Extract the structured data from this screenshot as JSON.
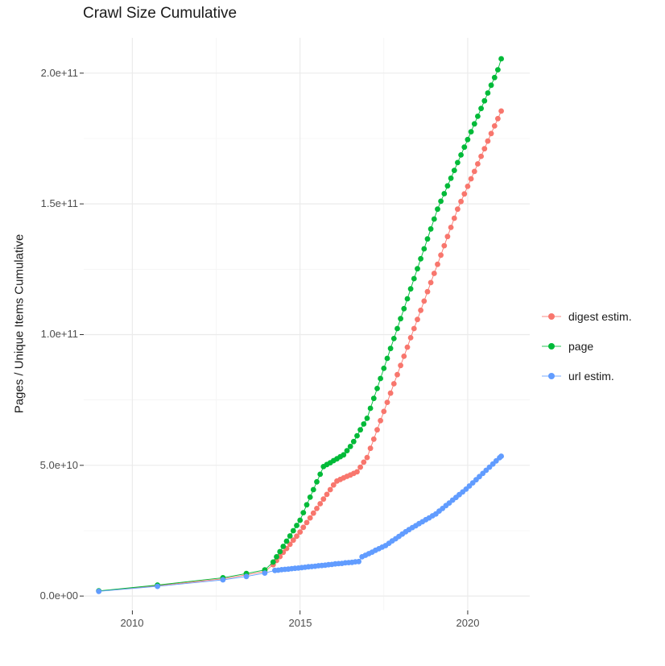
{
  "title": "Crawl Size Cumulative",
  "axes": {
    "y_title": "Pages / Unique Items Cumulative",
    "y_tick_labels": [
      "0.0e+00",
      "5.0e+10",
      "1.0e+11",
      "1.5e+11",
      "2.0e+11"
    ],
    "x_tick_labels": [
      "2010",
      "2015",
      "2020"
    ]
  },
  "colors": {
    "digest": "#F8766D",
    "page": "#00BA38",
    "url": "#619CFF",
    "grid_major": "#EBEBEB",
    "grid_minor": "#F4F4F4",
    "tick_mark": "#333333",
    "tick_label": "#4D4D4D",
    "text": "#1A1A1A"
  },
  "chart_data": {
    "type": "line",
    "title": "Crawl Size Cumulative",
    "xlabel": "",
    "ylabel": "Pages / Unique Items Cumulative",
    "legend_position": "right",
    "grid": true,
    "value_unit": "items, values given in billions (1e9)",
    "x_range": [
      2008.55,
      2021.85
    ],
    "y_range_e9": [
      -5.5,
      213.5
    ],
    "x_major_ticks": [
      2010,
      2015,
      2020
    ],
    "x_minor_ticks": [
      2012.5,
      2017.5
    ],
    "y_major_ticks_e9": [
      0,
      50,
      100,
      150,
      200
    ],
    "y_minor_ticks_e9": [
      25,
      75,
      125,
      175
    ],
    "y_major_tick_labels": [
      "0.0e+00",
      "5.0e+10",
      "1.0e+11",
      "1.5e+11",
      "2.0e+11"
    ],
    "series": [
      {
        "name": "digest estim.",
        "color": "#F8766D",
        "points": [
          [
            2009.0,
            1.9
          ],
          [
            2010.75,
            4.0
          ],
          [
            2012.7,
            6.6
          ],
          [
            2013.4,
            8.1
          ],
          [
            2013.95,
            9.4
          ],
          [
            2014.2,
            12.0
          ],
          [
            2014.3,
            13.6
          ],
          [
            2014.4,
            15.1
          ],
          [
            2014.5,
            16.7
          ],
          [
            2014.6,
            18.2
          ],
          [
            2014.7,
            19.8
          ],
          [
            2014.8,
            21.4
          ],
          [
            2014.9,
            22.9
          ],
          [
            2015.0,
            24.5
          ],
          [
            2015.1,
            26.3
          ],
          [
            2015.2,
            28.1
          ],
          [
            2015.3,
            29.9
          ],
          [
            2015.4,
            31.7
          ],
          [
            2015.5,
            33.5
          ],
          [
            2015.6,
            35.3
          ],
          [
            2015.7,
            37.1
          ],
          [
            2015.8,
            38.9
          ],
          [
            2015.9,
            40.7
          ],
          [
            2016.0,
            42.5
          ],
          [
            2016.1,
            44.0
          ],
          [
            2016.2,
            44.6
          ],
          [
            2016.3,
            45.2
          ],
          [
            2016.4,
            45.8
          ],
          [
            2016.5,
            46.3
          ],
          [
            2016.6,
            46.9
          ],
          [
            2016.7,
            47.5
          ],
          [
            2016.8,
            49.3
          ],
          [
            2016.9,
            51.2
          ],
          [
            2017.0,
            53.0
          ],
          [
            2017.1,
            56.5
          ],
          [
            2017.2,
            60.0
          ],
          [
            2017.3,
            63.6
          ],
          [
            2017.4,
            67.1
          ],
          [
            2017.5,
            70.6
          ],
          [
            2017.6,
            74.1
          ],
          [
            2017.7,
            77.6
          ],
          [
            2017.8,
            81.2
          ],
          [
            2017.9,
            84.7
          ],
          [
            2018.0,
            88.2
          ],
          [
            2018.1,
            91.7
          ],
          [
            2018.2,
            95.2
          ],
          [
            2018.3,
            98.8
          ],
          [
            2018.4,
            102.3
          ],
          [
            2018.5,
            105.8
          ],
          [
            2018.6,
            109.3
          ],
          [
            2018.7,
            112.8
          ],
          [
            2018.8,
            116.4
          ],
          [
            2018.9,
            119.9
          ],
          [
            2019.0,
            123.4
          ],
          [
            2019.1,
            126.9
          ],
          [
            2019.2,
            130.4
          ],
          [
            2019.3,
            134.0
          ],
          [
            2019.4,
            137.5
          ],
          [
            2019.5,
            141.0
          ],
          [
            2019.6,
            144.5
          ],
          [
            2019.7,
            148.0
          ],
          [
            2019.8,
            150.9
          ],
          [
            2019.9,
            153.8
          ],
          [
            2020.0,
            156.7
          ],
          [
            2020.1,
            159.6
          ],
          [
            2020.2,
            162.4
          ],
          [
            2020.3,
            165.3
          ],
          [
            2020.4,
            168.2
          ],
          [
            2020.5,
            171.1
          ],
          [
            2020.6,
            174.0
          ],
          [
            2020.7,
            176.9
          ],
          [
            2020.8,
            179.8
          ],
          [
            2020.9,
            182.6
          ],
          [
            2021.0,
            185.5
          ]
        ]
      },
      {
        "name": "page",
        "color": "#00BA38",
        "points": [
          [
            2009.0,
            2.0
          ],
          [
            2010.75,
            4.2
          ],
          [
            2012.7,
            7.0
          ],
          [
            2013.4,
            8.6
          ],
          [
            2013.95,
            10.0
          ],
          [
            2014.2,
            13.0
          ],
          [
            2014.3,
            15.0
          ],
          [
            2014.4,
            17.0
          ],
          [
            2014.5,
            19.0
          ],
          [
            2014.6,
            21.0
          ],
          [
            2014.7,
            23.0
          ],
          [
            2014.8,
            25.0
          ],
          [
            2014.9,
            27.0
          ],
          [
            2015.0,
            29.0
          ],
          [
            2015.1,
            31.9
          ],
          [
            2015.2,
            34.9
          ],
          [
            2015.3,
            37.8
          ],
          [
            2015.4,
            40.7
          ],
          [
            2015.5,
            43.7
          ],
          [
            2015.6,
            46.6
          ],
          [
            2015.7,
            49.5
          ],
          [
            2015.8,
            50.3
          ],
          [
            2015.9,
            51.0
          ],
          [
            2016.0,
            51.8
          ],
          [
            2016.1,
            52.5
          ],
          [
            2016.2,
            53.3
          ],
          [
            2016.3,
            54.0
          ],
          [
            2016.4,
            55.6
          ],
          [
            2016.5,
            57.2
          ],
          [
            2016.6,
            59.1
          ],
          [
            2016.7,
            61.3
          ],
          [
            2016.8,
            63.6
          ],
          [
            2016.9,
            65.8
          ],
          [
            2017.0,
            68.0
          ],
          [
            2017.1,
            71.8
          ],
          [
            2017.2,
            75.6
          ],
          [
            2017.3,
            79.4
          ],
          [
            2017.4,
            83.2
          ],
          [
            2017.5,
            87.1
          ],
          [
            2017.6,
            90.9
          ],
          [
            2017.7,
            94.7
          ],
          [
            2017.8,
            98.5
          ],
          [
            2017.9,
            102.3
          ],
          [
            2018.0,
            106.1
          ],
          [
            2018.1,
            109.9
          ],
          [
            2018.2,
            113.7
          ],
          [
            2018.3,
            117.5
          ],
          [
            2018.4,
            121.4
          ],
          [
            2018.5,
            125.2
          ],
          [
            2018.6,
            129.0
          ],
          [
            2018.7,
            132.8
          ],
          [
            2018.8,
            136.6
          ],
          [
            2018.9,
            140.4
          ],
          [
            2019.0,
            144.2
          ],
          [
            2019.1,
            148.0
          ],
          [
            2019.2,
            151.0
          ],
          [
            2019.3,
            153.9
          ],
          [
            2019.4,
            156.9
          ],
          [
            2019.5,
            159.8
          ],
          [
            2019.6,
            162.8
          ],
          [
            2019.7,
            165.8
          ],
          [
            2019.8,
            168.7
          ],
          [
            2019.9,
            171.7
          ],
          [
            2020.0,
            174.6
          ],
          [
            2020.1,
            177.6
          ],
          [
            2020.2,
            180.6
          ],
          [
            2020.3,
            183.5
          ],
          [
            2020.4,
            186.5
          ],
          [
            2020.5,
            189.4
          ],
          [
            2020.6,
            192.4
          ],
          [
            2020.7,
            195.4
          ],
          [
            2020.8,
            198.3
          ],
          [
            2020.9,
            201.3
          ],
          [
            2021.0,
            205.5
          ]
        ]
      },
      {
        "name": "url estim.",
        "color": "#619CFF",
        "points": [
          [
            2009.0,
            1.8
          ],
          [
            2010.75,
            3.7
          ],
          [
            2012.7,
            6.2
          ],
          [
            2013.4,
            7.5
          ],
          [
            2013.95,
            8.8
          ],
          [
            2014.25,
            9.8
          ],
          [
            2014.35,
            9.9
          ],
          [
            2014.45,
            10.1
          ],
          [
            2014.55,
            10.2
          ],
          [
            2014.65,
            10.3
          ],
          [
            2014.75,
            10.5
          ],
          [
            2014.85,
            10.6
          ],
          [
            2014.95,
            10.7
          ],
          [
            2015.05,
            10.9
          ],
          [
            2015.15,
            11.0
          ],
          [
            2015.25,
            11.2
          ],
          [
            2015.35,
            11.3
          ],
          [
            2015.45,
            11.4
          ],
          [
            2015.55,
            11.6
          ],
          [
            2015.65,
            11.7
          ],
          [
            2015.75,
            11.8
          ],
          [
            2015.85,
            12.0
          ],
          [
            2015.95,
            12.1
          ],
          [
            2016.05,
            12.3
          ],
          [
            2016.15,
            12.4
          ],
          [
            2016.25,
            12.5
          ],
          [
            2016.35,
            12.7
          ],
          [
            2016.45,
            12.8
          ],
          [
            2016.55,
            12.9
          ],
          [
            2016.65,
            13.1
          ],
          [
            2016.75,
            13.2
          ],
          [
            2016.85,
            15.0
          ],
          [
            2016.95,
            15.6
          ],
          [
            2017.05,
            16.2
          ],
          [
            2017.15,
            16.8
          ],
          [
            2017.25,
            17.5
          ],
          [
            2017.35,
            18.1
          ],
          [
            2017.45,
            18.7
          ],
          [
            2017.55,
            19.3
          ],
          [
            2017.65,
            20.2
          ],
          [
            2017.75,
            21.1
          ],
          [
            2017.85,
            21.9
          ],
          [
            2017.95,
            22.8
          ],
          [
            2018.05,
            23.7
          ],
          [
            2018.15,
            24.6
          ],
          [
            2018.25,
            25.4
          ],
          [
            2018.35,
            26.2
          ],
          [
            2018.45,
            26.9
          ],
          [
            2018.55,
            27.7
          ],
          [
            2018.65,
            28.4
          ],
          [
            2018.75,
            29.2
          ],
          [
            2018.85,
            29.9
          ],
          [
            2018.95,
            30.7
          ],
          [
            2019.05,
            31.4
          ],
          [
            2019.15,
            32.5
          ],
          [
            2019.25,
            33.5
          ],
          [
            2019.35,
            34.6
          ],
          [
            2019.45,
            35.6
          ],
          [
            2019.55,
            36.7
          ],
          [
            2019.65,
            37.7
          ],
          [
            2019.75,
            38.8
          ],
          [
            2019.85,
            39.8
          ],
          [
            2019.95,
            40.9
          ],
          [
            2020.05,
            42.1
          ],
          [
            2020.15,
            43.3
          ],
          [
            2020.25,
            44.5
          ],
          [
            2020.35,
            45.7
          ],
          [
            2020.45,
            46.9
          ],
          [
            2020.55,
            48.1
          ],
          [
            2020.65,
            49.3
          ],
          [
            2020.75,
            50.5
          ],
          [
            2020.85,
            51.7
          ],
          [
            2020.95,
            52.9
          ],
          [
            2021.0,
            53.5
          ]
        ]
      }
    ]
  }
}
